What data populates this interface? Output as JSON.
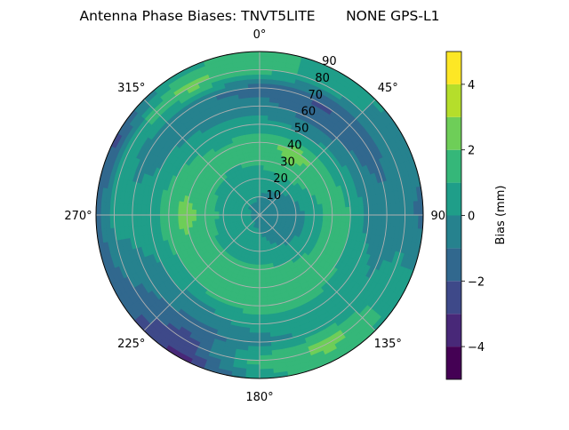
{
  "chart_data": {
    "type": "heatmap",
    "subtype": "polar-contour",
    "title": "Antenna Phase Biases: TNVT5LITE       NONE GPS-L1",
    "colorbar_label": "Bias (mm)",
    "colormap": "viridis",
    "levels": [
      -5,
      -4,
      -3,
      -2,
      -1,
      0,
      1,
      2,
      3,
      4,
      5
    ],
    "level_colors": [
      "#440154",
      "#482878",
      "#3e4989",
      "#31688e",
      "#26828e",
      "#1f9e89",
      "#35b779",
      "#6ece58",
      "#b5de2b",
      "#fde725"
    ],
    "colorbar_ticks": [
      "-4",
      "-2",
      "0",
      "2",
      "4"
    ],
    "colorbar_tick_values": [
      -4,
      -2,
      0,
      2,
      4
    ],
    "angle_ticks": [
      "0°",
      "45°",
      "90°",
      "135°",
      "180°",
      "225°",
      "270°",
      "315°"
    ],
    "angle_tick_values": [
      0,
      45,
      90,
      135,
      180,
      225,
      270,
      315
    ],
    "radial_ticks": [
      "10",
      "20",
      "30",
      "40",
      "50",
      "60",
      "70",
      "80",
      "90"
    ],
    "radial_tick_values": [
      10,
      20,
      30,
      40,
      50,
      60,
      70,
      80,
      90
    ],
    "rlim": [
      0,
      90
    ],
    "theta_direction": "clockwise",
    "theta_zero": "north",
    "grid": true,
    "azimuth": [
      0,
      30,
      60,
      90,
      120,
      150,
      180,
      210,
      240,
      270,
      300,
      330
    ],
    "zenith": [
      0,
      10,
      20,
      30,
      40,
      50,
      60,
      70,
      80,
      90
    ],
    "bias": [
      [
        -0.5,
        -0.5,
        -0.5,
        -0.5,
        -0.5,
        -0.5,
        -0.5,
        -0.5,
        -0.5,
        -0.5,
        -0.5,
        -0.5
      ],
      [
        0,
        -0.5,
        -0.5,
        -0.5,
        -0.5,
        -0.3,
        0,
        0.3,
        0.3,
        0.3,
        0.3,
        0.2
      ],
      [
        0.5,
        0.5,
        0,
        -0.5,
        -0.3,
        0,
        0.5,
        0.5,
        0.5,
        0.8,
        0.5,
        0.5
      ],
      [
        1.2,
        2,
        1.2,
        0.5,
        0.5,
        1,
        1.2,
        1.2,
        1.2,
        1.5,
        1.2,
        1
      ],
      [
        1.5,
        2.5,
        1.5,
        1.5,
        1.5,
        1.5,
        1.5,
        1.5,
        1.5,
        2.5,
        1.5,
        1.2
      ],
      [
        0.5,
        0,
        0.5,
        1,
        1,
        1.5,
        1.5,
        1.2,
        1,
        1.8,
        1,
        0.5
      ],
      [
        -0.5,
        -1.5,
        -0.8,
        -0.3,
        0.3,
        0.5,
        0.5,
        -0.3,
        0,
        0.5,
        0,
        -0.5
      ],
      [
        -1.5,
        -2.2,
        -1.5,
        -0.5,
        0,
        0.5,
        -0.5,
        -1.5,
        -0.5,
        0.5,
        -0.5,
        -0.8
      ],
      [
        1.5,
        0.5,
        -0.5,
        -0.5,
        0.5,
        2.5,
        1.5,
        -2.5,
        -1.2,
        0.5,
        0.5,
        2.5
      ],
      [
        1.5,
        0.5,
        -0.3,
        -1.5,
        0.5,
        1.5,
        0.5,
        -3.5,
        -1.5,
        -1.5,
        -2.5,
        0.5
      ]
    ]
  }
}
